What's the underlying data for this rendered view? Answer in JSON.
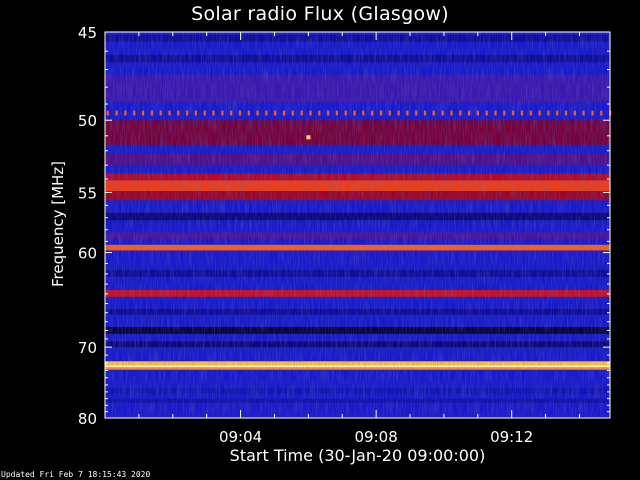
{
  "chart_data": {
    "type": "heatmap",
    "title": "Solar radio Flux (Glasgow)",
    "xlabel": "Start Time (30-Jan-20 09:00:00)",
    "ylabel": "Frequency [MHz]",
    "x_range_minutes": [
      0,
      14.9
    ],
    "x_ticks": [
      {
        "minute": 4,
        "label": "09:04"
      },
      {
        "minute": 8,
        "label": "09:08"
      },
      {
        "minute": 12,
        "label": "09:12"
      }
    ],
    "y_range_mhz": [
      45,
      80
    ],
    "y_scale": "reciprocal",
    "y_ticks": [
      {
        "mhz": 45,
        "label": "45"
      },
      {
        "mhz": 50,
        "label": "50"
      },
      {
        "mhz": 55,
        "label": "55"
      },
      {
        "mhz": 60,
        "label": "60"
      },
      {
        "mhz": 70,
        "label": "70"
      },
      {
        "mhz": 80,
        "label": "80"
      }
    ],
    "colormap": [
      "#000000",
      "#0a0a8c",
      "#1f22e6",
      "#7a0030",
      "#d01020",
      "#ff5a10",
      "#ffd040",
      "#ffffd8"
    ],
    "base_level": 0.24,
    "bands": [
      {
        "mhz_low": 45.15,
        "mhz_high": 45.5,
        "level": 0.16
      },
      {
        "mhz_low": 46.2,
        "mhz_high": 46.6,
        "level": 0.16
      },
      {
        "mhz_low": 47.3,
        "mhz_high": 48.9,
        "level": 0.33
      },
      {
        "mhz_low": 49.4,
        "mhz_high": 49.7,
        "level": 0.72,
        "dotted": true,
        "dot_period_min": 0.26
      },
      {
        "mhz_low": 50.0,
        "mhz_high": 51.6,
        "level": 0.42
      },
      {
        "mhz_low": 52.2,
        "mhz_high": 53.0,
        "level": 0.36
      },
      {
        "mhz_low": 53.6,
        "mhz_high": 54.1,
        "level": 0.52
      },
      {
        "mhz_low": 54.1,
        "mhz_high": 54.9,
        "level": 0.66
      },
      {
        "mhz_low": 54.9,
        "mhz_high": 55.6,
        "level": 0.48
      },
      {
        "mhz_low": 56.6,
        "mhz_high": 57.2,
        "level": 0.12
      },
      {
        "mhz_low": 58.2,
        "mhz_high": 58.8,
        "level": 0.34
      },
      {
        "mhz_low": 59.3,
        "mhz_high": 59.8,
        "level": 0.72
      },
      {
        "mhz_low": 61.6,
        "mhz_high": 62.3,
        "level": 0.16
      },
      {
        "mhz_low": 63.6,
        "mhz_high": 64.3,
        "level": 0.56
      },
      {
        "mhz_low": 65.6,
        "mhz_high": 66.2,
        "level": 0.15
      },
      {
        "mhz_low": 67.6,
        "mhz_high": 68.4,
        "level": 0.05
      },
      {
        "mhz_low": 69.3,
        "mhz_high": 70.0,
        "level": 0.12
      },
      {
        "mhz_low": 71.8,
        "mhz_high": 72.3,
        "level": 0.84
      },
      {
        "mhz_low": 72.3,
        "mhz_high": 72.6,
        "level": 0.97
      },
      {
        "mhz_low": 72.6,
        "mhz_high": 72.9,
        "level": 0.78
      },
      {
        "mhz_low": 75.5,
        "mhz_high": 76.3,
        "level": 0.2
      },
      {
        "mhz_low": 77.0,
        "mhz_high": 77.6,
        "level": 0.18
      }
    ],
    "spots": [
      {
        "minute": 6.0,
        "mhz": 51.1,
        "level": 0.9
      }
    ]
  },
  "footer": "Updated Fri Feb  7 18:15:43 2020"
}
